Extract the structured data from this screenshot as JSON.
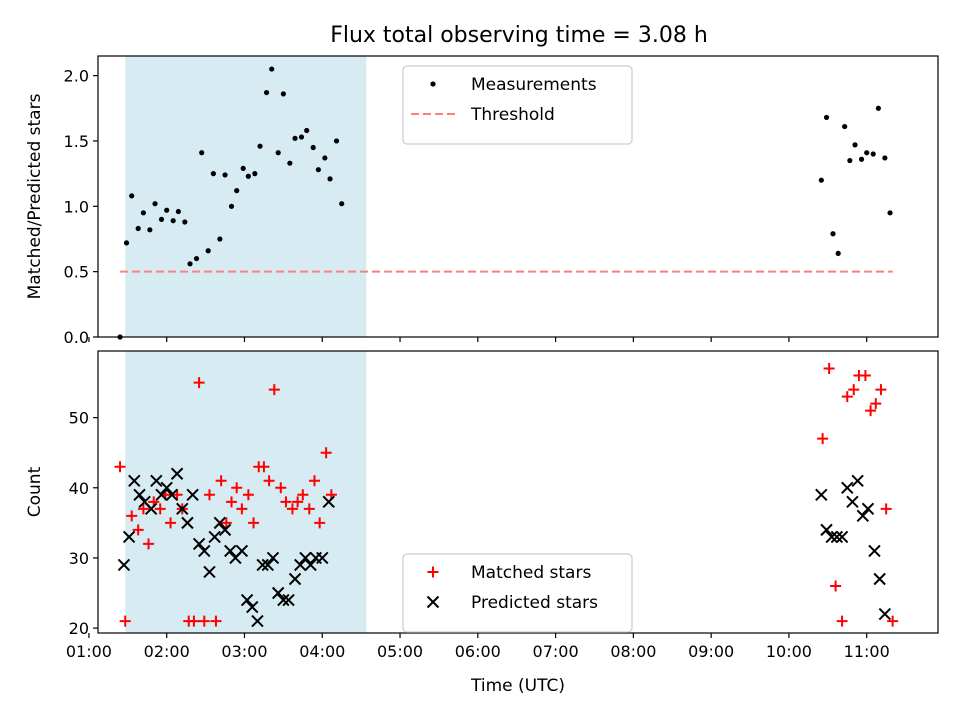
{
  "title": "Flux total observing time = 3.08 h",
  "colors": {
    "matched": "#ff0000",
    "predicted": "#000000",
    "threshold": "#ff7f7f",
    "shade": "#add8e6"
  },
  "chart_data": [
    {
      "type": "scatter",
      "ylabel": "Matched/Predicted stars",
      "xlim": [
        "01:07",
        "11:55"
      ],
      "ylim": [
        0,
        2.15
      ],
      "yticks": [
        "0.0",
        "0.5",
        "1.0",
        "1.5",
        "2.0"
      ],
      "shaded_interval": [
        "01:28",
        "04:34"
      ],
      "legend": {
        "placement": "top-center",
        "entries": [
          {
            "label": "Measurements",
            "marker": "dot"
          },
          {
            "label": "Threshold",
            "marker": "dashed-line"
          }
        ]
      },
      "threshold": {
        "value": 0.5,
        "x": [
          "01:24",
          "11:20"
        ]
      },
      "series": [
        {
          "name": "Measurements",
          "points": [
            [
              "01:24",
              0.0
            ],
            [
              "01:29",
              0.72
            ],
            [
              "01:33",
              1.08
            ],
            [
              "01:38",
              0.83
            ],
            [
              "01:42",
              0.95
            ],
            [
              "01:47",
              0.82
            ],
            [
              "01:51",
              1.02
            ],
            [
              "01:56",
              0.9
            ],
            [
              "02:00",
              0.97
            ],
            [
              "02:05",
              0.89
            ],
            [
              "02:09",
              0.96
            ],
            [
              "02:14",
              0.88
            ],
            [
              "02:18",
              0.56
            ],
            [
              "02:23",
              0.6
            ],
            [
              "02:27",
              1.41
            ],
            [
              "02:32",
              0.66
            ],
            [
              "02:36",
              1.25
            ],
            [
              "02:41",
              0.75
            ],
            [
              "02:45",
              1.24
            ],
            [
              "02:50",
              1.0
            ],
            [
              "02:54",
              1.12
            ],
            [
              "02:59",
              1.29
            ],
            [
              "03:03",
              1.23
            ],
            [
              "03:08",
              1.25
            ],
            [
              "03:12",
              1.46
            ],
            [
              "03:17",
              1.87
            ],
            [
              "03:21",
              2.05
            ],
            [
              "03:26",
              1.41
            ],
            [
              "03:30",
              1.86
            ],
            [
              "03:35",
              1.33
            ],
            [
              "03:39",
              1.52
            ],
            [
              "03:44",
              1.53
            ],
            [
              "03:48",
              1.58
            ],
            [
              "03:53",
              1.45
            ],
            [
              "03:57",
              1.28
            ],
            [
              "04:02",
              1.37
            ],
            [
              "04:06",
              1.21
            ],
            [
              "04:11",
              1.5
            ],
            [
              "04:15",
              1.02
            ],
            [
              "10:25",
              1.2
            ],
            [
              "10:29",
              1.68
            ],
            [
              "10:34",
              0.79
            ],
            [
              "10:38",
              0.64
            ],
            [
              "10:43",
              1.61
            ],
            [
              "10:47",
              1.35
            ],
            [
              "10:51",
              1.47
            ],
            [
              "10:56",
              1.36
            ],
            [
              "11:00",
              1.41
            ],
            [
              "11:05",
              1.4
            ],
            [
              "11:09",
              1.75
            ],
            [
              "11:14",
              1.37
            ],
            [
              "11:18",
              0.95
            ]
          ]
        }
      ]
    },
    {
      "type": "scatter",
      "xlabel": "Time (UTC)",
      "ylabel": "Count",
      "xlim": [
        "01:07",
        "11:55"
      ],
      "ylim": [
        19.3,
        59.5
      ],
      "yticks": [
        "20",
        "30",
        "40",
        "50"
      ],
      "xticks": [
        "01:00",
        "02:00",
        "03:00",
        "04:00",
        "05:00",
        "06:00",
        "07:00",
        "08:00",
        "09:00",
        "10:00",
        "11:00"
      ],
      "shaded_interval": [
        "01:28",
        "04:34"
      ],
      "legend": {
        "placement": "bottom-center",
        "entries": [
          {
            "label": "Matched stars",
            "marker": "plus"
          },
          {
            "label": "Predicted stars",
            "marker": "x"
          }
        ]
      },
      "series": [
        {
          "name": "Matched stars",
          "marker": "plus",
          "points": [
            [
              "01:24",
              43
            ],
            [
              "01:28",
              21
            ],
            [
              "01:33",
              36
            ],
            [
              "01:38",
              34
            ],
            [
              "01:42",
              37
            ],
            [
              "01:46",
              32
            ],
            [
              "01:50",
              38
            ],
            [
              "01:55",
              37
            ],
            [
              "01:59",
              39
            ],
            [
              "02:03",
              35
            ],
            [
              "02:08",
              39
            ],
            [
              "02:12",
              37
            ],
            [
              "02:17",
              21
            ],
            [
              "02:21",
              21
            ],
            [
              "02:25",
              55
            ],
            [
              "02:29",
              21
            ],
            [
              "02:33",
              39
            ],
            [
              "02:38",
              21
            ],
            [
              "02:42",
              41
            ],
            [
              "02:46",
              35
            ],
            [
              "02:50",
              38
            ],
            [
              "02:54",
              40
            ],
            [
              "02:58",
              37
            ],
            [
              "03:03",
              39
            ],
            [
              "03:07",
              35
            ],
            [
              "03:11",
              43
            ],
            [
              "03:15",
              43
            ],
            [
              "03:19",
              41
            ],
            [
              "03:23",
              54
            ],
            [
              "03:28",
              40
            ],
            [
              "03:32",
              38
            ],
            [
              "03:37",
              37
            ],
            [
              "03:41",
              38
            ],
            [
              "03:45",
              39
            ],
            [
              "03:50",
              37
            ],
            [
              "03:54",
              41
            ],
            [
              "03:58",
              35
            ],
            [
              "04:03",
              45
            ],
            [
              "04:07",
              39
            ],
            [
              "10:26",
              47
            ],
            [
              "10:31",
              57
            ],
            [
              "10:36",
              26
            ],
            [
              "10:41",
              21
            ],
            [
              "10:45",
              53
            ],
            [
              "10:50",
              54
            ],
            [
              "10:54",
              56
            ],
            [
              "10:59",
              56
            ],
            [
              "11:03",
              51
            ],
            [
              "11:07",
              52
            ],
            [
              "11:11",
              54
            ],
            [
              "11:15",
              37
            ],
            [
              "11:20",
              21
            ]
          ]
        },
        {
          "name": "Predicted stars",
          "marker": "x",
          "points": [
            [
              "01:27",
              29
            ],
            [
              "01:31",
              33
            ],
            [
              "01:35",
              41
            ],
            [
              "01:39",
              39
            ],
            [
              "01:43",
              38
            ],
            [
              "01:48",
              37
            ],
            [
              "01:52",
              41
            ],
            [
              "01:56",
              39
            ],
            [
              "02:00",
              40
            ],
            [
              "02:04",
              39
            ],
            [
              "02:08",
              42
            ],
            [
              "02:12",
              37
            ],
            [
              "02:16",
              35
            ],
            [
              "02:20",
              39
            ],
            [
              "02:25",
              32
            ],
            [
              "02:29",
              31
            ],
            [
              "02:33",
              28
            ],
            [
              "02:37",
              33
            ],
            [
              "02:41",
              35
            ],
            [
              "02:45",
              34
            ],
            [
              "02:49",
              31
            ],
            [
              "02:53",
              30
            ],
            [
              "02:58",
              31
            ],
            [
              "03:02",
              24
            ],
            [
              "03:06",
              23
            ],
            [
              "03:10",
              21
            ],
            [
              "03:14",
              29
            ],
            [
              "03:18",
              29
            ],
            [
              "03:22",
              30
            ],
            [
              "03:26",
              25
            ],
            [
              "03:30",
              24
            ],
            [
              "03:34",
              24
            ],
            [
              "03:39",
              27
            ],
            [
              "03:43",
              29
            ],
            [
              "03:47",
              30
            ],
            [
              "03:51",
              29
            ],
            [
              "03:55",
              30
            ],
            [
              "04:00",
              30
            ],
            [
              "04:05",
              38
            ],
            [
              "10:25",
              39
            ],
            [
              "10:29",
              34
            ],
            [
              "10:33",
              33
            ],
            [
              "10:37",
              33
            ],
            [
              "10:41",
              33
            ],
            [
              "10:45",
              40
            ],
            [
              "10:49",
              38
            ],
            [
              "10:53",
              41
            ],
            [
              "10:57",
              36
            ],
            [
              "11:01",
              37
            ],
            [
              "11:06",
              31
            ],
            [
              "11:10",
              27
            ],
            [
              "11:14",
              22
            ]
          ]
        }
      ]
    }
  ]
}
